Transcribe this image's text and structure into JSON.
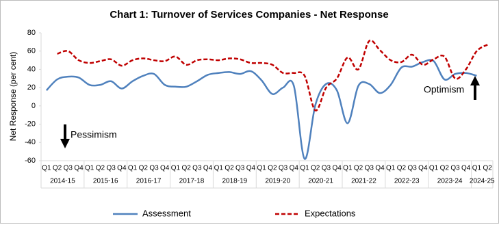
{
  "chart_data": {
    "type": "line",
    "title": "Chart 1: Turnover of Services Companies - Net Response",
    "y_label": "Net Response (per cent)",
    "categories": [
      "Q1",
      "Q2",
      "Q3",
      "Q4",
      "Q1",
      "Q2",
      "Q3",
      "Q4",
      "Q1",
      "Q2",
      "Q3",
      "Q4",
      "Q1",
      "Q2",
      "Q3",
      "Q4",
      "Q1",
      "Q2",
      "Q3",
      "Q4",
      "Q1",
      "Q2",
      "Q3",
      "Q4",
      "Q1",
      "Q2",
      "Q3",
      "Q4",
      "Q1",
      "Q2",
      "Q3",
      "Q4",
      "Q1",
      "Q2",
      "Q3",
      "Q4",
      "Q1",
      "Q2",
      "Q3",
      "Q4",
      "Q1",
      "Q2"
    ],
    "category_groups": [
      "2014-15",
      "2015-16",
      "2016-17",
      "2017-18",
      "2018-19",
      "2019-20",
      "2020-21",
      "2021-22",
      "2022-23",
      "2023-24",
      "2024-25"
    ],
    "series": [
      {
        "name": "Assessment",
        "color": "#4f81bd",
        "values": [
          17,
          29,
          32,
          31,
          23,
          23,
          27,
          19,
          27,
          33,
          35,
          23,
          21,
          21,
          27,
          34,
          36,
          37,
          35,
          38,
          28,
          13,
          20,
          22,
          -58,
          1,
          24,
          17,
          -19,
          22,
          24,
          14,
          23,
          42,
          43,
          48,
          49,
          29,
          35,
          36,
          33,
          null
        ]
      },
      {
        "name": "Expectations",
        "color": "#c00000",
        "values": [
          null,
          57,
          60,
          50,
          47,
          49,
          51,
          44,
          50,
          52,
          50,
          49,
          54,
          45,
          50,
          51,
          50,
          52,
          51,
          47,
          47,
          45,
          36,
          36,
          33,
          -5,
          20,
          30,
          53,
          40,
          71,
          61,
          50,
          48,
          56,
          45,
          51,
          54,
          30,
          40,
          60,
          67
        ]
      }
    ],
    "ylim": [
      -60,
      80
    ],
    "yticks": [
      -60,
      -40,
      -20,
      0,
      20,
      40,
      60,
      80
    ],
    "grid": false,
    "annotations": [
      "Pessimism",
      "Optimism"
    ]
  }
}
